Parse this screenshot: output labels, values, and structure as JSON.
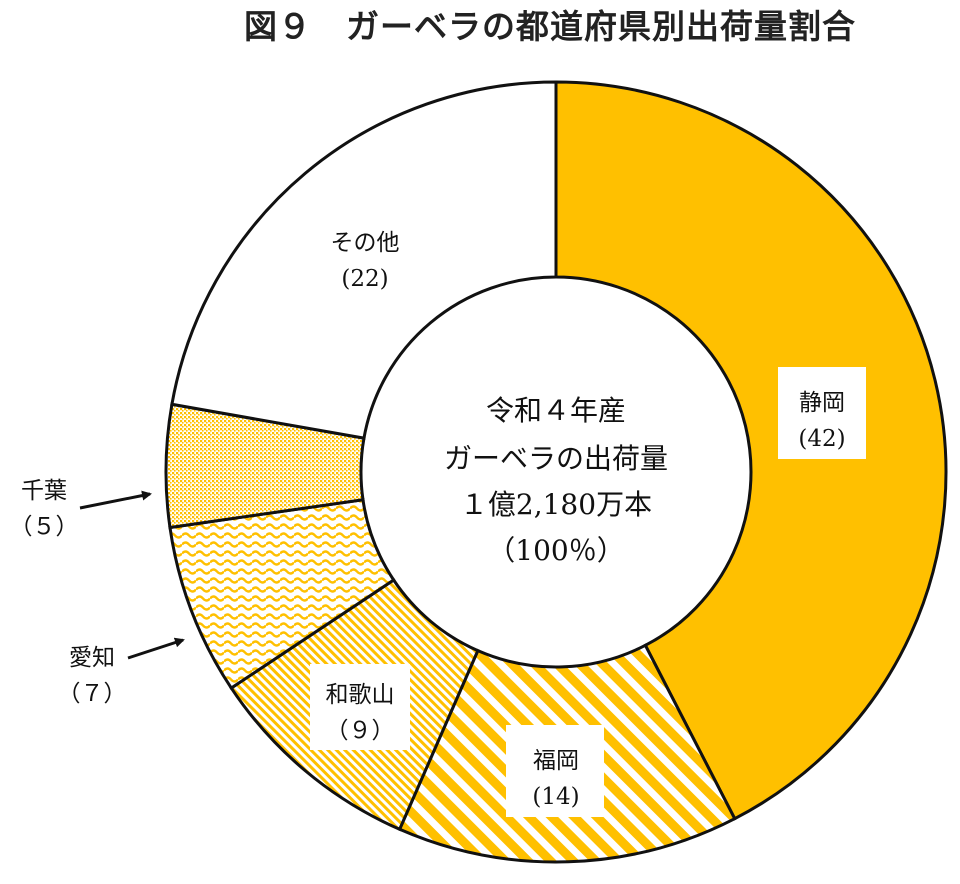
{
  "title": "図９　ガーベラの都道府県別出荷量割合",
  "center_text": {
    "line1": "令和４年産",
    "line2": "ガーベラの出荷量",
    "line3": "１億2,180万本",
    "line4": "（100％）"
  },
  "chart_data": {
    "type": "pie",
    "title": "図９　ガーベラの都道府県別出荷量割合",
    "unit": "%",
    "start": "12 o'clock",
    "direction": "clockwise",
    "slices": [
      {
        "label": "静岡",
        "value": 42,
        "value_text": "(42)",
        "pattern": "solid",
        "color": "#FFC000"
      },
      {
        "label": "福岡",
        "value": 14,
        "value_text": "(14)",
        "pattern": "diagonal-stripes",
        "color": "#FFC000"
      },
      {
        "label": "和歌山",
        "value": 9,
        "value_text": "（９）",
        "pattern": "fine-diagonal",
        "color": "#FFC000"
      },
      {
        "label": "愛知",
        "value": 7,
        "value_text": "（７）",
        "pattern": "waves",
        "color": "#FFC000"
      },
      {
        "label": "千葉",
        "value": 5,
        "value_text": "（５）",
        "pattern": "dots",
        "color": "#FFC000"
      },
      {
        "label": "その他",
        "value": 22,
        "value_text": "(22)",
        "pattern": "none",
        "color": "#FFFFFF"
      }
    ],
    "labels_outside": [
      "千葉",
      "愛知"
    ]
  }
}
